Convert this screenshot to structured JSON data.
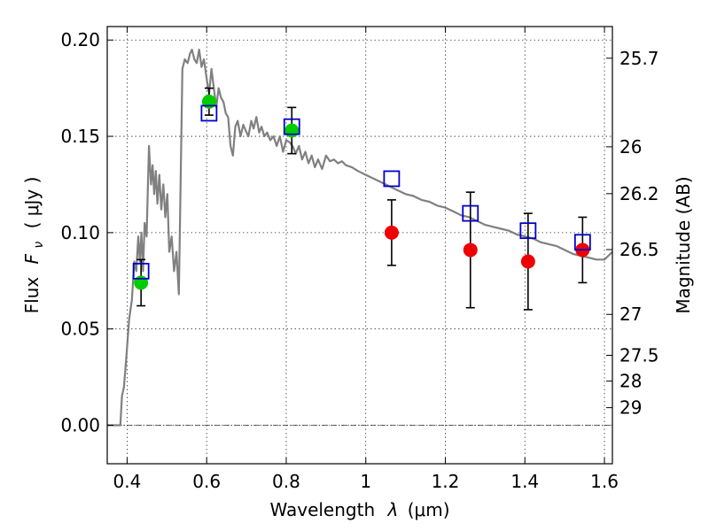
{
  "chart_data": {
    "type": "scatter",
    "xlabel_text": "Wavelength",
    "xlabel_symbol": "λ",
    "xlabel_unit": "(μm)",
    "ylabel_text": "Flux",
    "ylabel_symbol": "F",
    "ylabel_sub": "ν",
    "ylabel_unit": "( μJy )",
    "y2label": "Magnitude (AB)",
    "xlim": [
      0.35,
      1.62
    ],
    "ylim": [
      -0.02,
      0.207
    ],
    "x_ticks": [
      {
        "v": 0.4,
        "label": "0.4"
      },
      {
        "v": 0.6,
        "label": "0.6"
      },
      {
        "v": 0.8,
        "label": "0.8"
      },
      {
        "v": 1.0,
        "label": "1"
      },
      {
        "v": 1.2,
        "label": "1.2"
      },
      {
        "v": 1.4,
        "label": "1.4"
      },
      {
        "v": 1.6,
        "label": "1.6"
      }
    ],
    "y_ticks": [
      {
        "v": 0.0,
        "label": "0.00"
      },
      {
        "v": 0.05,
        "label": "0.05"
      },
      {
        "v": 0.1,
        "label": "0.10"
      },
      {
        "v": 0.15,
        "label": "0.15"
      },
      {
        "v": 0.2,
        "label": "0.20"
      }
    ],
    "mag_ticks": [
      {
        "v": 25.7,
        "label": "25.7"
      },
      {
        "v": 26,
        "label": "26"
      },
      {
        "v": 26.2,
        "label": "26.2"
      },
      {
        "v": 26.5,
        "label": "26.5"
      },
      {
        "v": 27,
        "label": "27"
      },
      {
        "v": 27.5,
        "label": "27.5"
      },
      {
        "v": 28,
        "label": "28"
      },
      {
        "v": 29,
        "label": "29"
      }
    ],
    "grid": true,
    "colors": {
      "model": "#808080",
      "detected": "#00cc00",
      "nir": "#ee0000",
      "model_phot": "#0000cc",
      "errorbar": "#000000"
    },
    "model_spectrum": [
      [
        0.35,
        0.0
      ],
      [
        0.383,
        0.0
      ],
      [
        0.387,
        0.015
      ],
      [
        0.392,
        0.02
      ],
      [
        0.398,
        0.035
      ],
      [
        0.405,
        0.055
      ],
      [
        0.412,
        0.065
      ],
      [
        0.418,
        0.085
      ],
      [
        0.423,
        0.08
      ],
      [
        0.428,
        0.098
      ],
      [
        0.432,
        0.085
      ],
      [
        0.436,
        0.1
      ],
      [
        0.44,
        0.08
      ],
      [
        0.444,
        0.105
      ],
      [
        0.449,
        0.098
      ],
      [
        0.455,
        0.145
      ],
      [
        0.46,
        0.125
      ],
      [
        0.464,
        0.135
      ],
      [
        0.468,
        0.12
      ],
      [
        0.472,
        0.132
      ],
      [
        0.476,
        0.115
      ],
      [
        0.481,
        0.13
      ],
      [
        0.486,
        0.112
      ],
      [
        0.491,
        0.125
      ],
      [
        0.496,
        0.108
      ],
      [
        0.501,
        0.12
      ],
      [
        0.506,
        0.09
      ],
      [
        0.512,
        0.098
      ],
      [
        0.518,
        0.08
      ],
      [
        0.524,
        0.09
      ],
      [
        0.53,
        0.068
      ],
      [
        0.534,
        0.12
      ],
      [
        0.539,
        0.185
      ],
      [
        0.545,
        0.19
      ],
      [
        0.552,
        0.188
      ],
      [
        0.558,
        0.193
      ],
      [
        0.563,
        0.195
      ],
      [
        0.569,
        0.19
      ],
      [
        0.575,
        0.188
      ],
      [
        0.581,
        0.195
      ],
      [
        0.587,
        0.186
      ],
      [
        0.593,
        0.19
      ],
      [
        0.6,
        0.18
      ],
      [
        0.606,
        0.172
      ],
      [
        0.612,
        0.185
      ],
      [
        0.618,
        0.175
      ],
      [
        0.624,
        0.165
      ],
      [
        0.63,
        0.175
      ],
      [
        0.636,
        0.17
      ],
      [
        0.642,
        0.168
      ],
      [
        0.648,
        0.162
      ],
      [
        0.654,
        0.16
      ],
      [
        0.66,
        0.145
      ],
      [
        0.666,
        0.14
      ],
      [
        0.672,
        0.155
      ],
      [
        0.678,
        0.158
      ],
      [
        0.685,
        0.15
      ],
      [
        0.692,
        0.156
      ],
      [
        0.698,
        0.153
      ],
      [
        0.705,
        0.15
      ],
      [
        0.712,
        0.158
      ],
      [
        0.718,
        0.154
      ],
      [
        0.725,
        0.16
      ],
      [
        0.732,
        0.152
      ],
      [
        0.738,
        0.155
      ],
      [
        0.745,
        0.15
      ],
      [
        0.752,
        0.152
      ],
      [
        0.76,
        0.148
      ],
      [
        0.768,
        0.15
      ],
      [
        0.776,
        0.145
      ],
      [
        0.784,
        0.15
      ],
      [
        0.792,
        0.142
      ],
      [
        0.8,
        0.148
      ],
      [
        0.808,
        0.147
      ],
      [
        0.816,
        0.145
      ],
      [
        0.824,
        0.141
      ],
      [
        0.832,
        0.145
      ],
      [
        0.84,
        0.138
      ],
      [
        0.848,
        0.142
      ],
      [
        0.856,
        0.136
      ],
      [
        0.864,
        0.14
      ],
      [
        0.872,
        0.134
      ],
      [
        0.88,
        0.138
      ],
      [
        0.89,
        0.133
      ],
      [
        0.9,
        0.14
      ],
      [
        0.91,
        0.137
      ],
      [
        0.92,
        0.138
      ],
      [
        0.93,
        0.136
      ],
      [
        0.94,
        0.137
      ],
      [
        0.95,
        0.135
      ],
      [
        0.965,
        0.134
      ],
      [
        0.98,
        0.132
      ],
      [
        1.0,
        0.13
      ],
      [
        1.02,
        0.128
      ],
      [
        1.04,
        0.126
      ],
      [
        1.06,
        0.124
      ],
      [
        1.08,
        0.122
      ],
      [
        1.1,
        0.12
      ],
      [
        1.12,
        0.119
      ],
      [
        1.14,
        0.117
      ],
      [
        1.16,
        0.116
      ],
      [
        1.18,
        0.114
      ],
      [
        1.2,
        0.113
      ],
      [
        1.22,
        0.111
      ],
      [
        1.24,
        0.109
      ],
      [
        1.26,
        0.108
      ],
      [
        1.28,
        0.106
      ],
      [
        1.3,
        0.104
      ],
      [
        1.32,
        0.103
      ],
      [
        1.34,
        0.102
      ],
      [
        1.36,
        0.101
      ],
      [
        1.38,
        0.099
      ],
      [
        1.4,
        0.098
      ],
      [
        1.42,
        0.097
      ],
      [
        1.44,
        0.095
      ],
      [
        1.46,
        0.094
      ],
      [
        1.48,
        0.093
      ],
      [
        1.5,
        0.091
      ],
      [
        1.52,
        0.089
      ],
      [
        1.54,
        0.088
      ],
      [
        1.56,
        0.087
      ],
      [
        1.58,
        0.086
      ],
      [
        1.6,
        0.086
      ],
      [
        1.61,
        0.088
      ],
      [
        1.62,
        0.09
      ]
    ],
    "detected": [
      {
        "x": 0.435,
        "y": 0.074,
        "err": 0.012
      },
      {
        "x": 0.606,
        "y": 0.168,
        "err": 0.007
      },
      {
        "x": 0.814,
        "y": 0.153,
        "err": 0.012
      }
    ],
    "nir": [
      {
        "x": 1.065,
        "y": 0.1,
        "err": 0.017
      },
      {
        "x": 1.263,
        "y": 0.091,
        "err": 0.03
      },
      {
        "x": 1.408,
        "y": 0.085,
        "err": 0.025
      },
      {
        "x": 1.545,
        "y": 0.091,
        "err": 0.017
      }
    ],
    "model_phot": [
      {
        "x": 0.435,
        "y": 0.08
      },
      {
        "x": 0.606,
        "y": 0.162
      },
      {
        "x": 0.814,
        "y": 0.155
      },
      {
        "x": 1.065,
        "y": 0.128
      },
      {
        "x": 1.263,
        "y": 0.11
      },
      {
        "x": 1.408,
        "y": 0.101
      },
      {
        "x": 1.545,
        "y": 0.095
      }
    ]
  }
}
